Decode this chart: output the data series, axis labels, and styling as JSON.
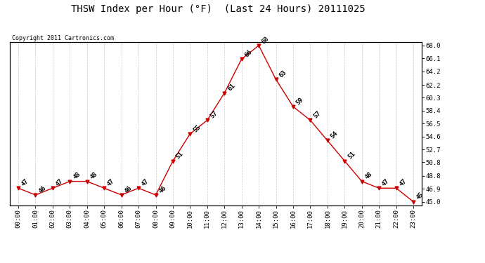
{
  "title": "THSW Index per Hour (°F)  (Last 24 Hours) 20111025",
  "copyright_text": "Copyright 2011 Cartronics.com",
  "hours": [
    "00:00",
    "01:00",
    "02:00",
    "03:00",
    "04:00",
    "05:00",
    "06:00",
    "07:00",
    "08:00",
    "09:00",
    "10:00",
    "11:00",
    "12:00",
    "13:00",
    "14:00",
    "15:00",
    "16:00",
    "17:00",
    "18:00",
    "19:00",
    "20:00",
    "21:00",
    "22:00",
    "23:00"
  ],
  "values": [
    47,
    46,
    47,
    48,
    48,
    47,
    46,
    47,
    46,
    51,
    55,
    57,
    61,
    66,
    68,
    63,
    59,
    57,
    54,
    51,
    48,
    47,
    47,
    45
  ],
  "point_labels": [
    "47",
    "46",
    "47",
    "48",
    "48",
    "47",
    "46",
    "47",
    "46",
    "51",
    "55",
    "57",
    "61",
    "66",
    "68",
    "63",
    "59",
    "57",
    "54",
    "51",
    "48",
    "47",
    "47",
    "45"
  ],
  "line_color": "#cc0000",
  "marker_color": "#cc0000",
  "bg_color": "#ffffff",
  "grid_color": "#cccccc",
  "yticks": [
    45.0,
    46.9,
    48.8,
    50.8,
    52.7,
    54.6,
    56.5,
    58.4,
    60.3,
    62.2,
    64.2,
    66.1,
    68.0
  ],
  "ylim_min": 44.5,
  "ylim_max": 68.5,
  "title_fontsize": 10,
  "label_fontsize": 6.5,
  "tick_fontsize": 6.5,
  "copyright_fontsize": 6
}
